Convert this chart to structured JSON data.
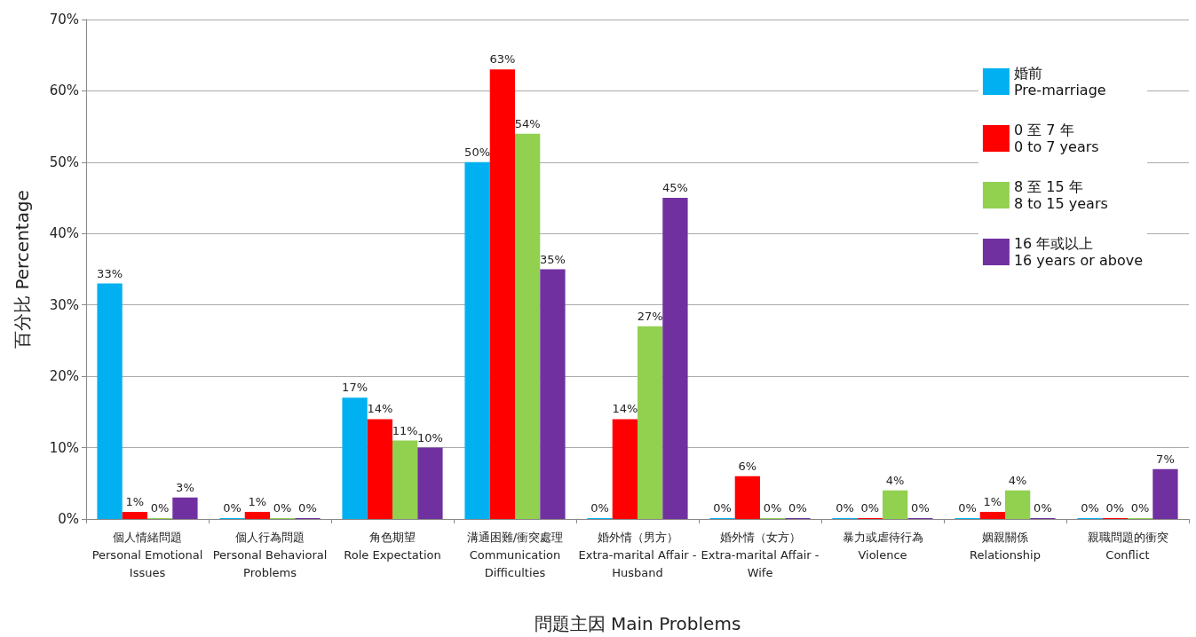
{
  "chart_data": {
    "type": "bar",
    "xlabel": "問題主因 Main Problems",
    "ylabel": "百分比 Percentage",
    "categories": [
      "個人情緒問題\nPersonal Emotional\nIssues",
      "個人行為問題\nPersonal Behavioral\nProblems",
      "角色期望\nRole Expectation",
      "溝通困難/衝突處理\nCommunication\nDifficulties",
      "婚外情（男方）\nExtra-marital Affair -\nHusband",
      "婚外情（女方）\nExtra-marital Affair -\nWife",
      "暴力或虐待行為\nViolence",
      "姻親關係\nRelationship",
      "親職問題的衝突\nConflict"
    ],
    "series": [
      {
        "name": "婚前\nPre-marriage",
        "color": "#00b0f0",
        "values": [
          33,
          0,
          17,
          50,
          0,
          0,
          0,
          0,
          0
        ],
        "value_labels": [
          "33%",
          "0%",
          "17%",
          "50%",
          "0%",
          "0%",
          "0%",
          "0%",
          "0%"
        ]
      },
      {
        "name": "0 至 7 年\n0 to 7 years",
        "color": "#ff0000",
        "values": [
          1,
          1,
          14,
          63,
          14,
          6,
          0,
          1,
          0
        ],
        "value_labels": [
          "1%",
          "1%",
          "14%",
          "63%",
          "14%",
          "6%",
          "0%",
          "1%",
          "0%"
        ]
      },
      {
        "name": "8 至 15 年\n8 to 15 years",
        "color": "#92d050",
        "values": [
          0,
          0,
          11,
          54,
          27,
          0,
          4,
          4,
          0
        ],
        "value_labels": [
          "0%",
          "0%",
          "11%",
          "54%",
          "27%",
          "0%",
          "4%",
          "4%",
          "0%"
        ]
      },
      {
        "name": "16 年或以上\n16 years or above",
        "color": "#7030a0",
        "values": [
          3,
          0,
          10,
          35,
          45,
          0,
          0,
          0,
          7
        ],
        "value_labels": [
          "3%",
          "0%",
          "10%",
          "35%",
          "45%",
          "0%",
          "0%",
          "0%",
          "7%"
        ]
      }
    ],
    "ylim": [
      0,
      70
    ],
    "yticks": [
      {
        "value": 0,
        "label": "0%"
      },
      {
        "value": 10,
        "label": "10%"
      },
      {
        "value": 20,
        "label": "20%"
      },
      {
        "value": 30,
        "label": "30%"
      },
      {
        "value": 40,
        "label": "40%"
      },
      {
        "value": 50,
        "label": "50%"
      },
      {
        "value": 60,
        "label": "60%"
      },
      {
        "value": 70,
        "label": "70%"
      }
    ],
    "grid": "y",
    "legend": "top right"
  }
}
